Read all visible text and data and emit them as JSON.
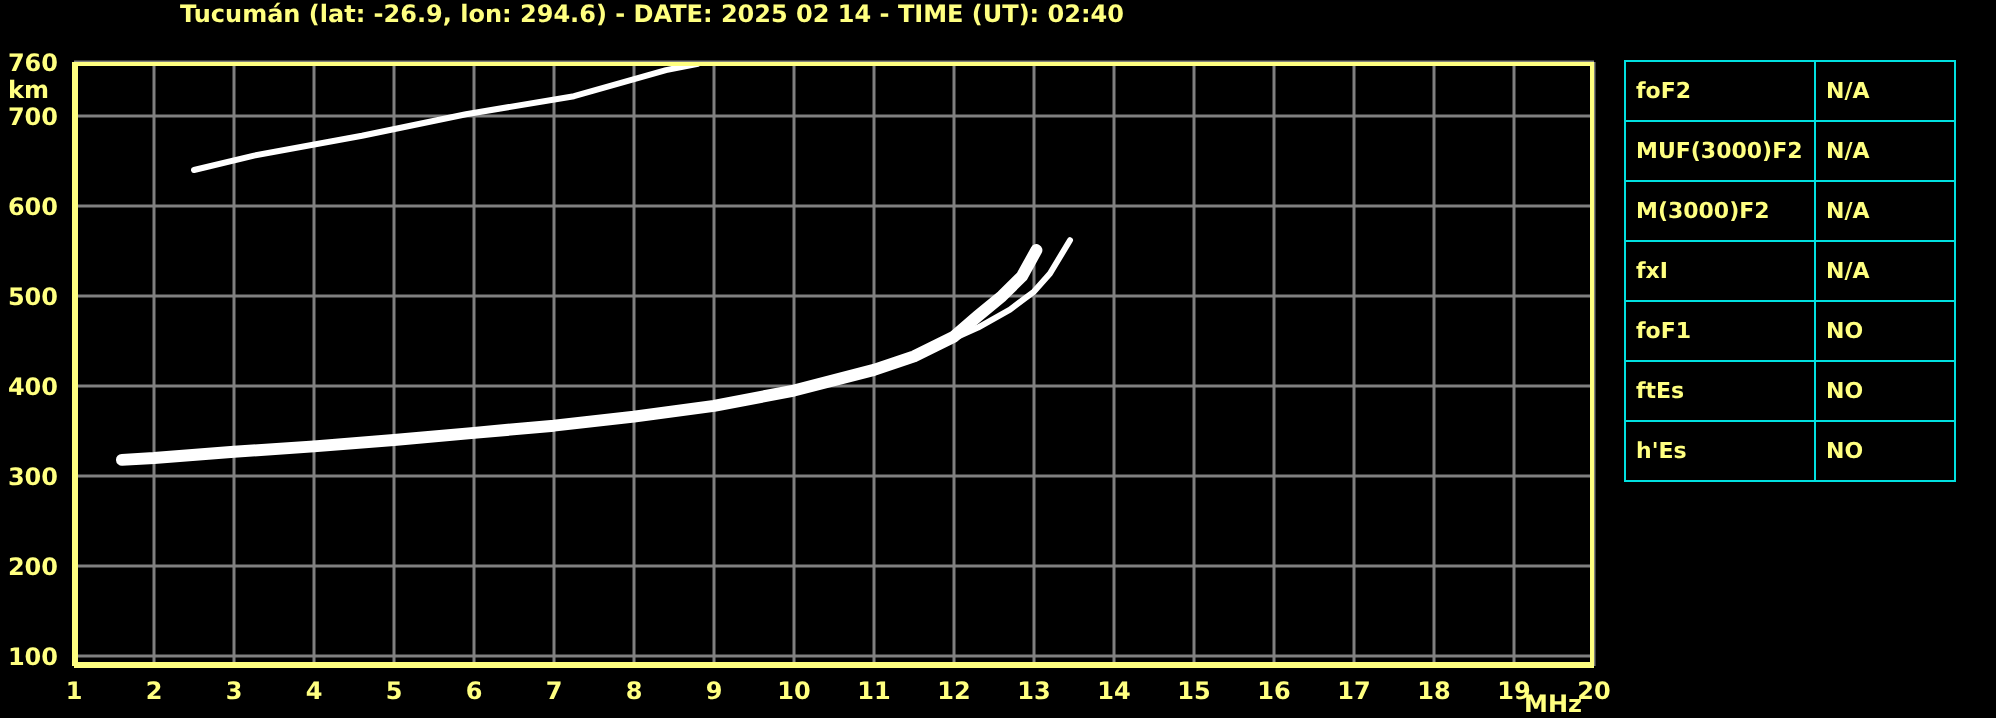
{
  "chart_data": [
    {
      "type": "line",
      "title": "Tucumán (lat: -26.9, lon: 294.6) - DATE: 2025 02 14 - TIME (UT): 02:40",
      "xlabel": "MHz",
      "ylabel": "km",
      "xlim": [
        1,
        20
      ],
      "xticks": [
        1,
        2,
        3,
        4,
        5,
        6,
        7,
        8,
        9,
        10,
        11,
        12,
        13,
        14,
        15,
        16,
        17,
        18,
        19,
        20
      ],
      "ylim": [
        89,
        760
      ],
      "yticks": [
        100,
        200,
        300,
        400,
        500,
        600,
        700,
        760
      ],
      "grid": true,
      "series": [
        {
          "color": "#ffffff",
          "x": [
            1.6,
            2,
            3,
            4,
            5,
            6,
            7,
            8,
            9,
            10,
            11,
            11.5,
            12,
            12.3,
            12.6,
            12.85,
            13.03
          ],
          "values": [
            318,
            320,
            327,
            333,
            340,
            348,
            356,
            366,
            378,
            395,
            418,
            433,
            455,
            478,
            500,
            522,
            551
          ]
        },
        {
          "color": "#ffffff",
          "x": [
            11.8,
            12.3,
            12.7,
            13,
            13.2,
            13.45
          ],
          "values": [
            445,
            465,
            485,
            505,
            525,
            562
          ]
        },
        {
          "color": "#ffffff",
          "x": [
            2.5,
            3.25,
            4.6,
            5.9,
            7.25,
            8.4,
            8.8
          ],
          "values": [
            640,
            656,
            678,
            702,
            722,
            751,
            758
          ]
        }
      ]
    },
    {
      "type": "other",
      "y_categories": [
        "foF2",
        "MUF(3000)F2",
        "M(3000)F2",
        "fxI",
        "foF1",
        "ftEs",
        "h'Es"
      ],
      "annotations": [
        "N/A",
        "N/A",
        "N/A",
        "N/A",
        "NO",
        "NO",
        "NO"
      ]
    }
  ]
}
